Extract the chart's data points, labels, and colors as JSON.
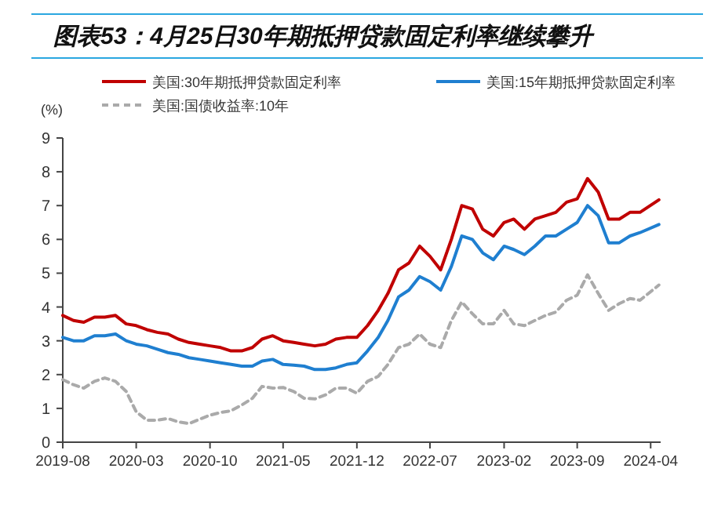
{
  "chart_data": {
    "type": "line",
    "title": "图表53：4月25日30年期抵押贷款固定利率继续攀升",
    "ylabel": "(%)",
    "x": [
      "2019-08",
      "2019-09",
      "2019-10",
      "2019-11",
      "2019-12",
      "2020-01",
      "2020-02",
      "2020-03",
      "2020-04",
      "2020-05",
      "2020-06",
      "2020-07",
      "2020-08",
      "2020-09",
      "2020-10",
      "2020-11",
      "2020-12",
      "2021-01",
      "2021-02",
      "2021-03",
      "2021-04",
      "2021-05",
      "2021-06",
      "2021-07",
      "2021-08",
      "2021-09",
      "2021-10",
      "2021-11",
      "2021-12",
      "2022-01",
      "2022-02",
      "2022-03",
      "2022-04",
      "2022-05",
      "2022-06",
      "2022-07",
      "2022-08",
      "2022-09",
      "2022-10",
      "2022-11",
      "2022-12",
      "2023-01",
      "2023-02",
      "2023-03",
      "2023-04",
      "2023-05",
      "2023-06",
      "2023-07",
      "2023-08",
      "2023-09",
      "2023-10",
      "2023-11",
      "2023-12",
      "2024-01",
      "2024-02",
      "2024-03",
      "2024-04-25"
    ],
    "series": [
      {
        "name": "美国:30年期抵押贷款固定利率",
        "color": "#c00000",
        "values": [
          3.75,
          3.6,
          3.55,
          3.7,
          3.7,
          3.75,
          3.5,
          3.45,
          3.33,
          3.25,
          3.2,
          3.05,
          2.95,
          2.9,
          2.85,
          2.8,
          2.7,
          2.7,
          2.8,
          3.05,
          3.15,
          3.0,
          2.95,
          2.9,
          2.85,
          2.9,
          3.05,
          3.1,
          3.1,
          3.45,
          3.9,
          4.4,
          5.1,
          5.3,
          5.8,
          5.5,
          5.1,
          6.0,
          7.0,
          6.9,
          6.3,
          6.1,
          6.5,
          6.6,
          6.3,
          6.6,
          6.7,
          6.8,
          7.1,
          7.2,
          7.8,
          7.4,
          6.6,
          6.6,
          6.8,
          6.8,
          7.17
        ]
      },
      {
        "name": "美国:15年期抵押贷款固定利率",
        "color": "#1f7fd0",
        "values": [
          3.1,
          3.0,
          3.0,
          3.15,
          3.15,
          3.2,
          3.0,
          2.9,
          2.85,
          2.75,
          2.65,
          2.6,
          2.5,
          2.45,
          2.4,
          2.35,
          2.3,
          2.25,
          2.25,
          2.4,
          2.45,
          2.3,
          2.28,
          2.25,
          2.15,
          2.15,
          2.2,
          2.3,
          2.35,
          2.7,
          3.1,
          3.6,
          4.3,
          4.5,
          4.9,
          4.75,
          4.5,
          5.2,
          6.1,
          6.0,
          5.6,
          5.4,
          5.8,
          5.7,
          5.55,
          5.8,
          6.1,
          6.1,
          6.3,
          6.5,
          7.0,
          6.7,
          5.9,
          5.9,
          6.1,
          6.2,
          6.44
        ]
      },
      {
        "name": "美国:国债收益率:10年",
        "color": "#aaaaaa",
        "line_style": "dashed",
        "values": [
          1.85,
          1.7,
          1.6,
          1.8,
          1.9,
          1.8,
          1.5,
          0.9,
          0.65,
          0.65,
          0.7,
          0.6,
          0.55,
          0.68,
          0.8,
          0.88,
          0.93,
          1.1,
          1.3,
          1.65,
          1.6,
          1.62,
          1.5,
          1.3,
          1.28,
          1.4,
          1.6,
          1.6,
          1.45,
          1.8,
          1.95,
          2.3,
          2.8,
          2.9,
          3.2,
          2.9,
          2.8,
          3.6,
          4.15,
          3.8,
          3.5,
          3.5,
          3.9,
          3.5,
          3.45,
          3.6,
          3.75,
          3.85,
          4.2,
          4.35,
          4.95,
          4.4,
          3.9,
          4.1,
          4.25,
          4.2,
          4.65
        ]
      }
    ],
    "xlim": [
      "2019-08-01",
      "2024-04-30"
    ],
    "xticks": [
      {
        "value": "2019-08",
        "label": "2019-08"
      },
      {
        "value": "2020-03",
        "label": "2020-03"
      },
      {
        "value": "2020-10",
        "label": "2020-10"
      },
      {
        "value": "2021-05",
        "label": "2021-05"
      },
      {
        "value": "2021-12",
        "label": "2021-12"
      },
      {
        "value": "2022-07",
        "label": "2022-07"
      },
      {
        "value": "2023-02",
        "label": "2023-02"
      },
      {
        "value": "2023-09",
        "label": "2023-09"
      },
      {
        "value": "2024-04",
        "label": "2024-04"
      }
    ],
    "ylim": [
      0,
      9
    ],
    "yticks": [
      0,
      1,
      2,
      3,
      4,
      5,
      6,
      7,
      8,
      9
    ],
    "legend": "top",
    "grid": false,
    "marker": "none",
    "line_style": "solid"
  }
}
